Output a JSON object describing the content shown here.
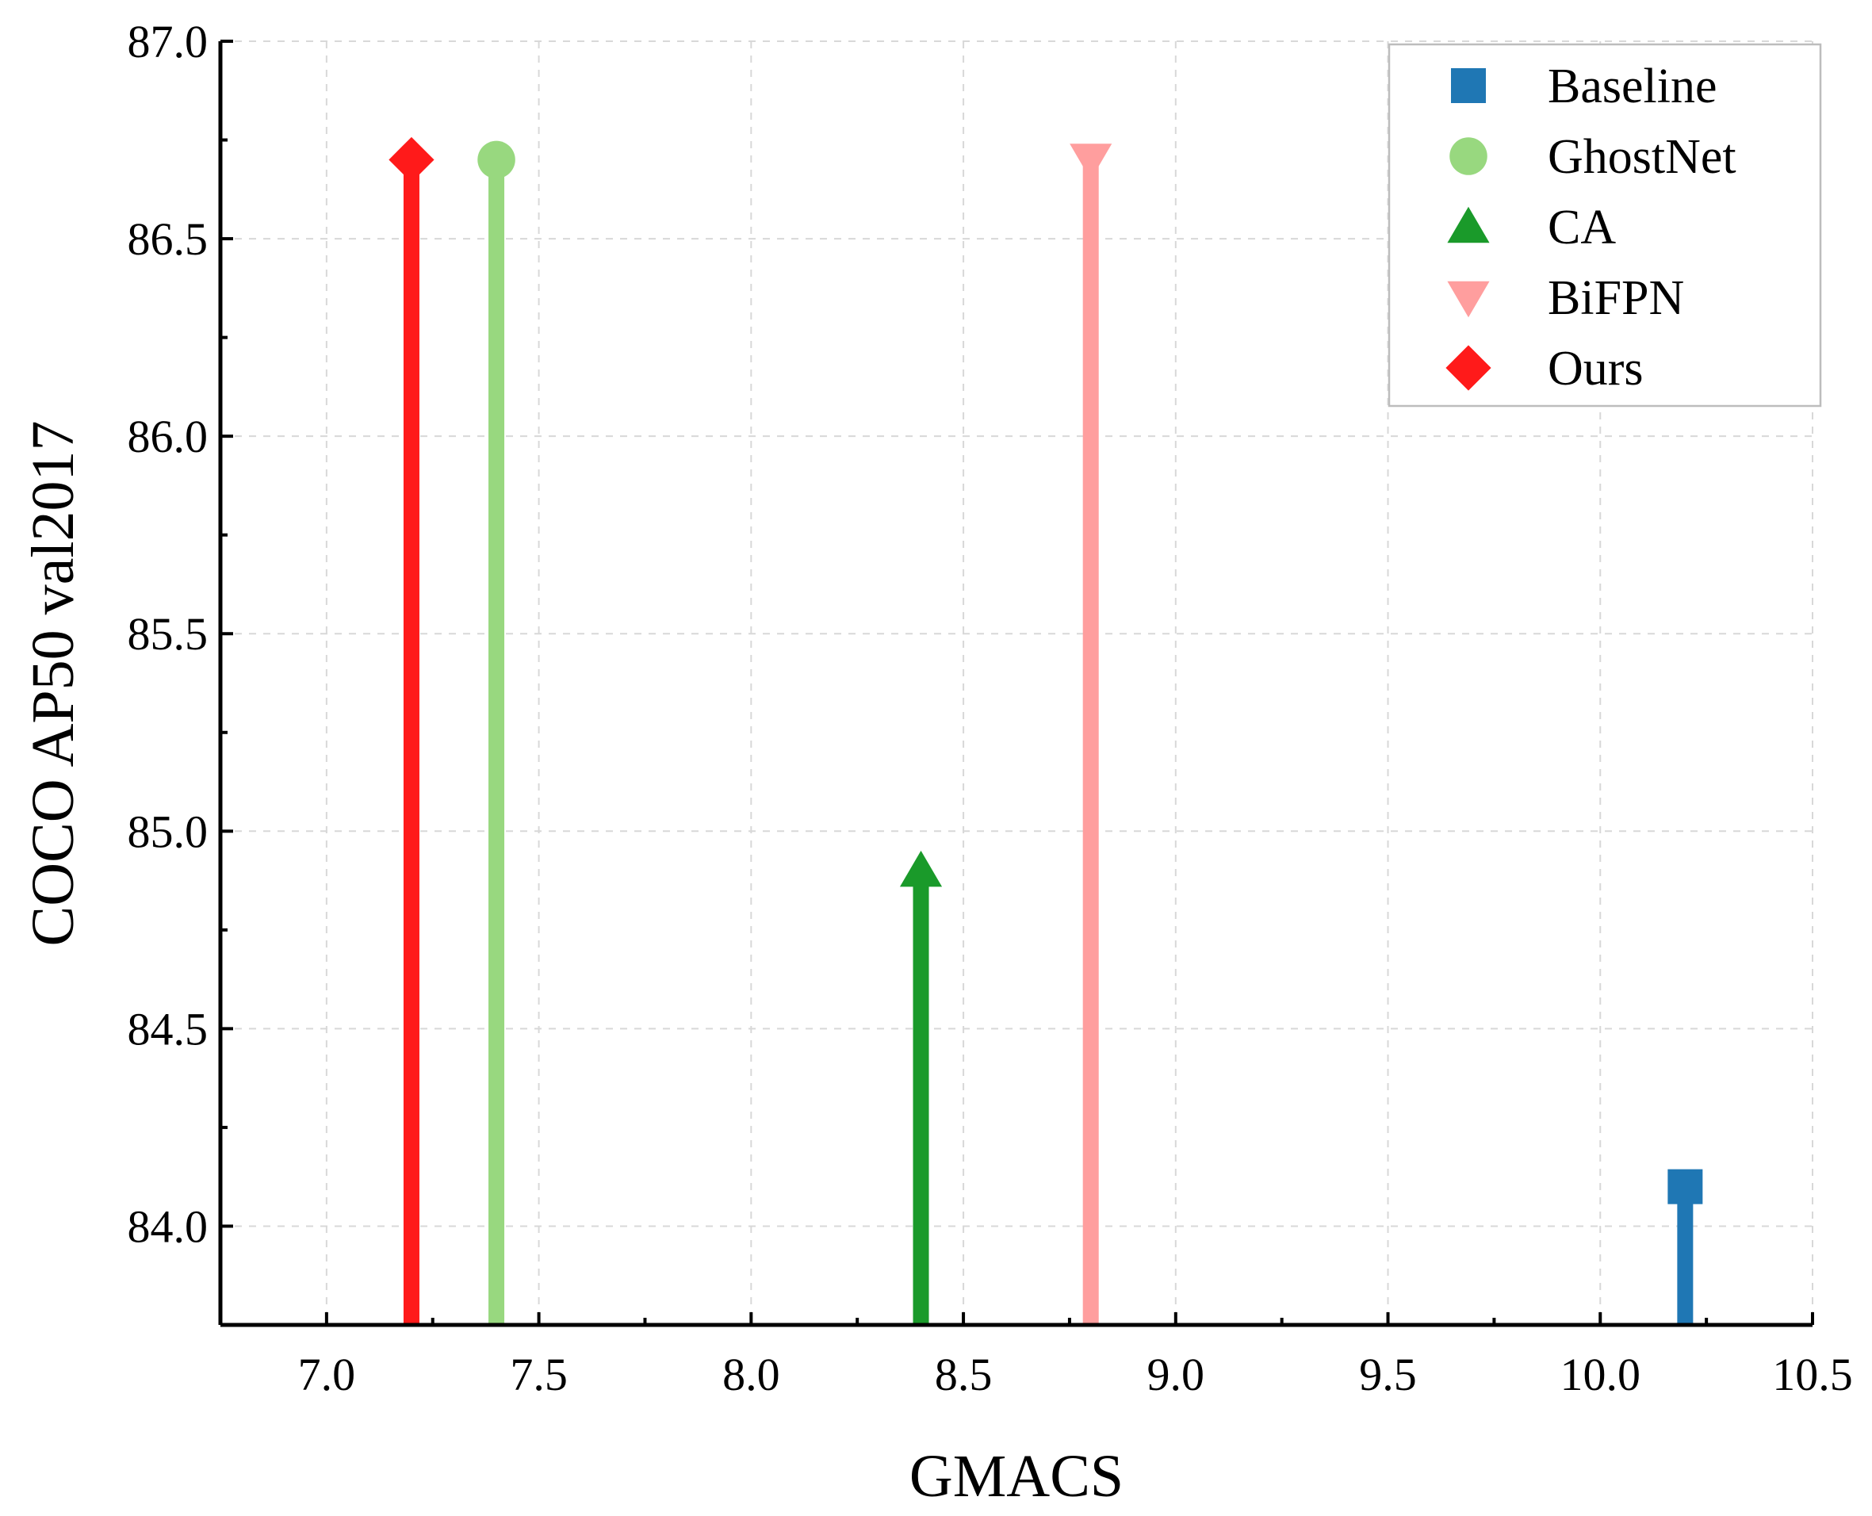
{
  "chart_data": {
    "type": "scatter",
    "title": "",
    "xlabel": "GMACS",
    "ylabel": "COCO AP50 val2017",
    "xlim": [
      6.75,
      10.5
    ],
    "ylim": [
      83.75,
      87.0
    ],
    "y_baseline": 83.75,
    "xticks": [
      "7.0",
      "7.5",
      "8.0",
      "8.5",
      "9.0",
      "9.5",
      "10.0",
      "10.5"
    ],
    "xtick_values": [
      7.0,
      7.5,
      8.0,
      8.5,
      9.0,
      9.5,
      10.0,
      10.5
    ],
    "yticks": [
      "84.0",
      "84.5",
      "85.0",
      "85.5",
      "86.0",
      "86.5",
      "87.0"
    ],
    "ytick_values": [
      84.0,
      84.5,
      85.0,
      85.5,
      86.0,
      86.5,
      87.0
    ],
    "grid": true,
    "legend_position": "top-right",
    "series": [
      {
        "name": "Baseline",
        "x": 10.2,
        "y": 84.1,
        "color": "#1f77b4",
        "marker": "square"
      },
      {
        "name": "GhostNet",
        "x": 7.4,
        "y": 86.7,
        "color": "#98d87f",
        "marker": "circle"
      },
      {
        "name": "CA",
        "x": 8.4,
        "y": 84.9,
        "color": "#1a9a2a",
        "marker": "triangle-up"
      },
      {
        "name": "BiFPN",
        "x": 8.8,
        "y": 86.7,
        "color": "#ff9e9e",
        "marker": "triangle-down"
      },
      {
        "name": "Ours",
        "x": 7.2,
        "y": 86.7,
        "color": "#ff1a1a",
        "marker": "diamond"
      }
    ]
  }
}
